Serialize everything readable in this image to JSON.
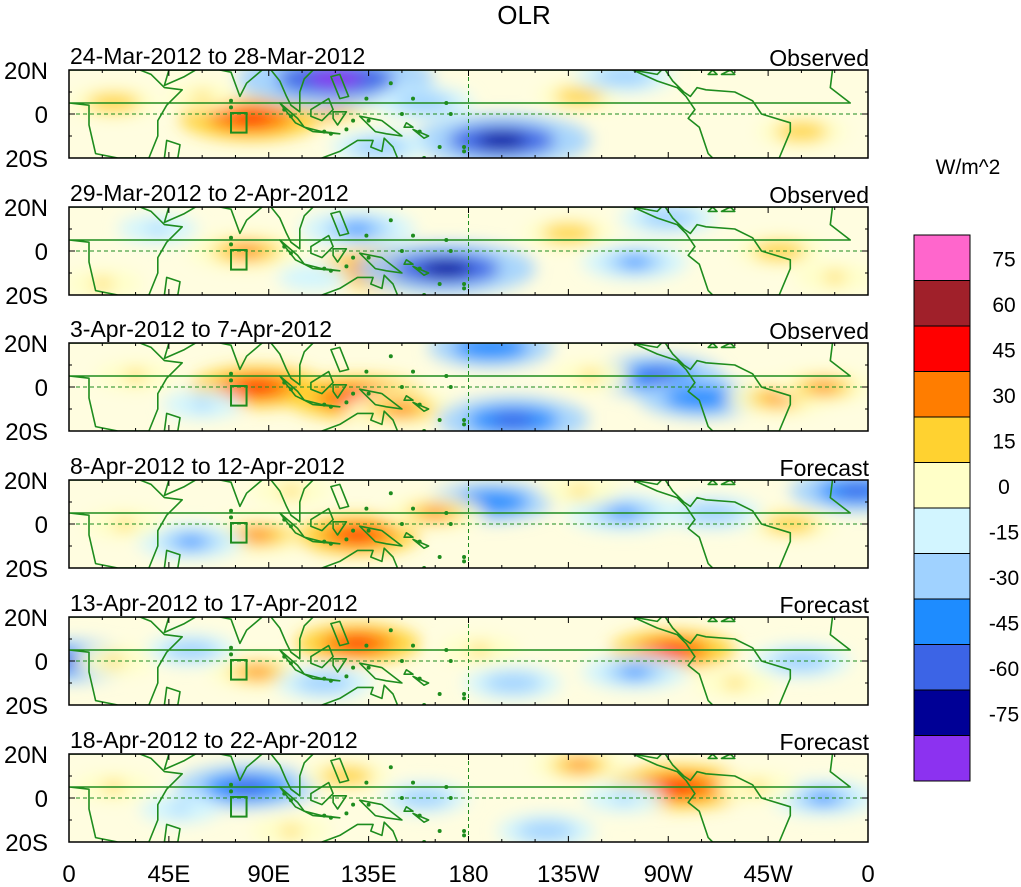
{
  "figure": {
    "title": "OLR",
    "colorbar": {
      "units": "W/m^2",
      "levels": [
        "75",
        "60",
        "45",
        "30",
        "15",
        "0",
        "-15",
        "-30",
        "-45",
        "-60",
        "-75"
      ],
      "colors": [
        "#ff66cc",
        "#a0202a",
        "#ff0000",
        "#ff7d00",
        "#ffd230",
        "#ffffc8",
        "#d2f5ff",
        "#a0d2ff",
        "#1e8cff",
        "#3c64e6",
        "#000096",
        "#8c32f0"
      ]
    },
    "x_tick_labels": [
      "0",
      "45E",
      "90E",
      "135E",
      "180",
      "135W",
      "90W",
      "45W",
      "0"
    ],
    "lat_labels": [
      "20N",
      "0",
      "20S"
    ],
    "panels": [
      {
        "date": "24-Mar-2012 to 28-Mar-2012",
        "kind": "Observed"
      },
      {
        "date": "29-Mar-2012 to 2-Apr-2012",
        "kind": "Observed"
      },
      {
        "date": "3-Apr-2012 to 7-Apr-2012",
        "kind": "Observed"
      },
      {
        "date": "8-Apr-2012 to 12-Apr-2012",
        "kind": "Forecast"
      },
      {
        "date": "13-Apr-2012 to 17-Apr-2012",
        "kind": "Forecast"
      },
      {
        "date": "18-Apr-2012 to 22-Apr-2012",
        "kind": "Forecast"
      }
    ],
    "anomaly_features": [
      [
        {
          "lon": 115,
          "lat": 2,
          "value": 40
        },
        {
          "lon": 100,
          "lat": 8,
          "value": -35
        },
        {
          "lon": 82,
          "lat": -2,
          "value": 55
        },
        {
          "lon": 120,
          "lat": 16,
          "value": -85
        },
        {
          "lon": 195,
          "lat": -12,
          "value": -75
        },
        {
          "lon": 160,
          "lat": 5,
          "value": -30
        },
        {
          "lon": 230,
          "lat": 8,
          "value": 22
        },
        {
          "lon": 330,
          "lat": -8,
          "value": 25
        },
        {
          "lon": 20,
          "lat": 5,
          "value": 25
        },
        {
          "lon": 250,
          "lat": 17,
          "value": -30
        },
        {
          "lon": 140,
          "lat": -15,
          "value": -30
        },
        {
          "lon": 60,
          "lat": 8,
          "value": 15
        }
      ],
      [
        {
          "lon": 80,
          "lat": 0,
          "value": 40
        },
        {
          "lon": 130,
          "lat": 10,
          "value": -40
        },
        {
          "lon": 145,
          "lat": -8,
          "value": 55
        },
        {
          "lon": 170,
          "lat": -8,
          "value": -75
        },
        {
          "lon": 225,
          "lat": 8,
          "value": 25
        },
        {
          "lon": 255,
          "lat": -5,
          "value": -35
        },
        {
          "lon": 320,
          "lat": 0,
          "value": 25
        },
        {
          "lon": 40,
          "lat": 10,
          "value": -20
        },
        {
          "lon": 15,
          "lat": -15,
          "value": 20
        },
        {
          "lon": 270,
          "lat": 15,
          "value": -30
        },
        {
          "lon": 110,
          "lat": -12,
          "value": -15
        },
        {
          "lon": 345,
          "lat": -12,
          "value": 20
        }
      ],
      [
        {
          "lon": 85,
          "lat": 0,
          "value": 50
        },
        {
          "lon": 130,
          "lat": -5,
          "value": 55
        },
        {
          "lon": 150,
          "lat": -10,
          "value": 40
        },
        {
          "lon": 265,
          "lat": 5,
          "value": -50
        },
        {
          "lon": 285,
          "lat": -5,
          "value": -45
        },
        {
          "lon": 200,
          "lat": -15,
          "value": -60
        },
        {
          "lon": 320,
          "lat": -5,
          "value": 35
        },
        {
          "lon": 340,
          "lat": 0,
          "value": 30
        },
        {
          "lon": 30,
          "lat": 5,
          "value": 20
        },
        {
          "lon": 60,
          "lat": -8,
          "value": -20
        },
        {
          "lon": 190,
          "lat": 18,
          "value": -45
        },
        {
          "lon": 235,
          "lat": 5,
          "value": 20
        }
      ],
      [
        {
          "lon": 85,
          "lat": -5,
          "value": 40
        },
        {
          "lon": 130,
          "lat": -5,
          "value": 45
        },
        {
          "lon": 55,
          "lat": -8,
          "value": -35
        },
        {
          "lon": 100,
          "lat": 15,
          "value": 20
        },
        {
          "lon": 190,
          "lat": 10,
          "value": -45
        },
        {
          "lon": 165,
          "lat": 5,
          "value": 30
        },
        {
          "lon": 250,
          "lat": 5,
          "value": -40
        },
        {
          "lon": 325,
          "lat": 0,
          "value": 25
        },
        {
          "lon": 355,
          "lat": 15,
          "value": -50
        },
        {
          "lon": 25,
          "lat": 0,
          "value": 20
        },
        {
          "lon": 230,
          "lat": 15,
          "value": 20
        },
        {
          "lon": 290,
          "lat": 5,
          "value": -30
        }
      ],
      [
        {
          "lon": 130,
          "lat": 8,
          "value": 45
        },
        {
          "lon": 85,
          "lat": -5,
          "value": 30
        },
        {
          "lon": 272,
          "lat": 5,
          "value": 45
        },
        {
          "lon": 115,
          "lat": -10,
          "value": -30
        },
        {
          "lon": 55,
          "lat": 5,
          "value": -25
        },
        {
          "lon": 200,
          "lat": -10,
          "value": -30
        },
        {
          "lon": 255,
          "lat": -5,
          "value": -35
        },
        {
          "lon": 0,
          "lat": 0,
          "value": -50
        },
        {
          "lon": 330,
          "lat": 0,
          "value": -30
        },
        {
          "lon": 185,
          "lat": 5,
          "value": 20
        },
        {
          "lon": 20,
          "lat": 0,
          "value": 20
        },
        {
          "lon": 300,
          "lat": -10,
          "value": 20
        }
      ],
      [
        {
          "lon": 80,
          "lat": 5,
          "value": -55
        },
        {
          "lon": 275,
          "lat": 5,
          "value": 55
        },
        {
          "lon": 125,
          "lat": 10,
          "value": 25
        },
        {
          "lon": 230,
          "lat": 15,
          "value": 30
        },
        {
          "lon": 50,
          "lat": -5,
          "value": -20
        },
        {
          "lon": 215,
          "lat": -15,
          "value": -30
        },
        {
          "lon": 340,
          "lat": 0,
          "value": -35
        },
        {
          "lon": 160,
          "lat": 0,
          "value": -25
        },
        {
          "lon": 310,
          "lat": 5,
          "value": 20
        },
        {
          "lon": 20,
          "lat": 5,
          "value": 20
        },
        {
          "lon": 250,
          "lat": 0,
          "value": -20
        },
        {
          "lon": 100,
          "lat": -15,
          "value": 20
        }
      ]
    ]
  }
}
